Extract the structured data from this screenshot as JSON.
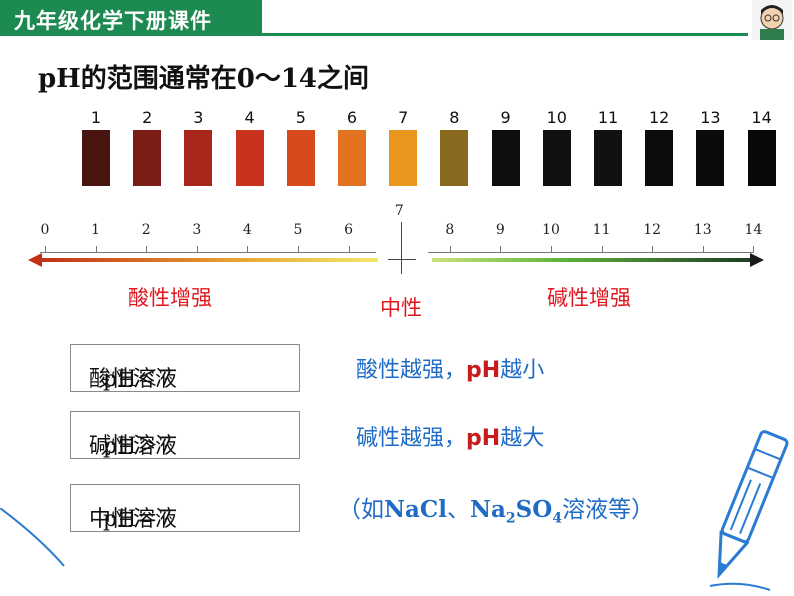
{
  "header": {
    "title": "九年级化学下册课件",
    "bar_color": "#1d8a52"
  },
  "slide_title": "pH的范围通常在0～14之间",
  "strips": {
    "labels": [
      "1",
      "2",
      "3",
      "4",
      "5",
      "6",
      "7",
      "8",
      "9",
      "10",
      "11",
      "12",
      "13",
      "14"
    ],
    "colors": [
      "#4a1510",
      "#7a1d16",
      "#a8261b",
      "#c9321c",
      "#d84a1d",
      "#e2721f",
      "#e8961e",
      "#8a6a1e",
      "#0e0e0e",
      "#101010",
      "#111111",
      "#0c0c0c",
      "#0a0a0a",
      "#090909"
    ]
  },
  "scale": {
    "ticks": [
      "0",
      "1",
      "2",
      "3",
      "4",
      "5",
      "6",
      "7",
      "8",
      "9",
      "10",
      "11",
      "12",
      "13",
      "14"
    ]
  },
  "labels": {
    "acid_stronger": "酸性增强",
    "neutral": "中性",
    "base_stronger": "碱性增强"
  },
  "rows": [
    {
      "box_text": "酸性溶液",
      "ph_text": "pH＜7",
      "rule_prefix": "酸性越强，",
      "rule_ph": "pH",
      "rule_suffix": "越小"
    },
    {
      "box_text": "碱性溶液",
      "ph_text": "pH＞7",
      "rule_prefix": "碱性越强，",
      "rule_ph": "pH",
      "rule_suffix": "越大"
    },
    {
      "box_text": "中性溶液",
      "ph_text": "pH＝7"
    }
  ],
  "example": {
    "open": "（如",
    "nacl": "NaCl",
    "sep": "、",
    "na": "Na",
    "sub2": "2",
    "so": "SO",
    "sub4": "4",
    "tail": "溶液等）"
  },
  "colors": {
    "accent_red": "#e0171e",
    "rule_blue": "#1f6bc6"
  }
}
